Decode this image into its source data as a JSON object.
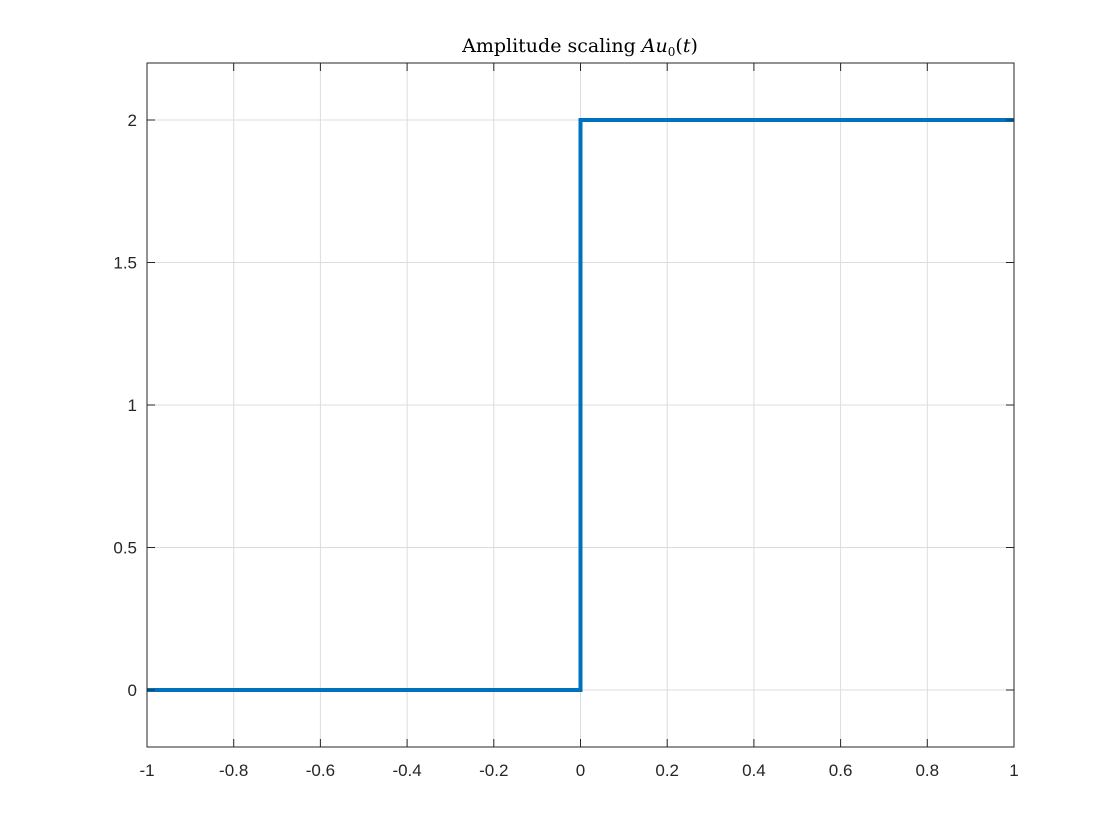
{
  "chart_data": {
    "type": "line",
    "title": "Amplitude scaling Au0(t)",
    "title_parts": {
      "prefix": "Amplitude scaling ",
      "var": "Au",
      "sub": "0",
      "open": "(",
      "arg": "t",
      "close": ")"
    },
    "xlabel": "",
    "ylabel": "",
    "xlim": [
      -1,
      1
    ],
    "ylim": [
      -0.2,
      2.2
    ],
    "xticks": [
      -1,
      -0.8,
      -0.6,
      -0.4,
      -0.2,
      0,
      0.2,
      0.4,
      0.6,
      0.8,
      1
    ],
    "xtick_labels": [
      "-1",
      "-0.8",
      "-0.6",
      "-0.4",
      "-0.2",
      "0",
      "0.2",
      "0.4",
      "0.6",
      "0.8",
      "1"
    ],
    "yticks": [
      0,
      0.5,
      1,
      1.5,
      2
    ],
    "ytick_labels": [
      "0",
      "0.5",
      "1",
      "1.5",
      "2"
    ],
    "grid": true,
    "series": [
      {
        "color": "#0072BD",
        "x": [
          -1,
          0,
          0,
          1
        ],
        "y": [
          0,
          0,
          2,
          2
        ]
      }
    ]
  }
}
